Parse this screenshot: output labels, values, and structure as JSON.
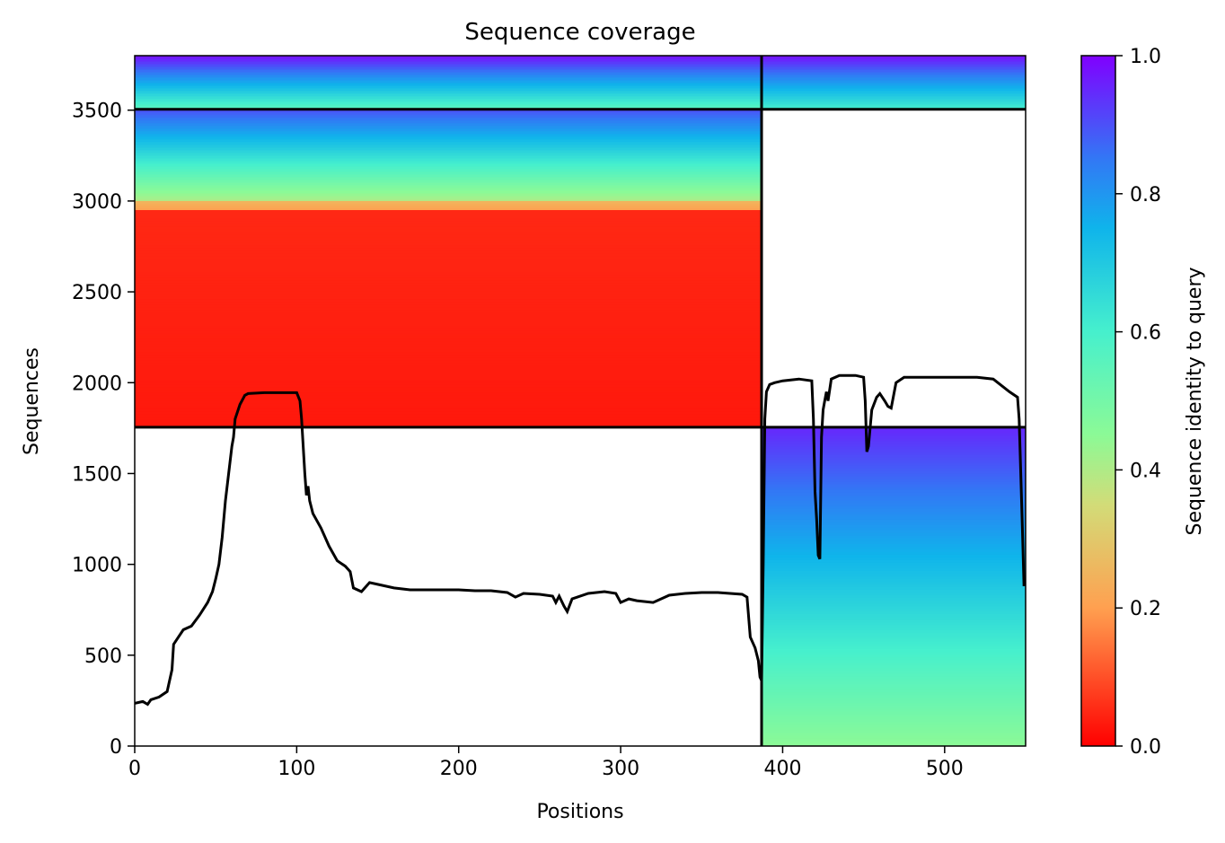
{
  "chart_data": {
    "type": "heatmap",
    "title": "Sequence coverage",
    "xlabel": "Positions",
    "ylabel": "Sequences",
    "xlim": [
      0,
      550
    ],
    "ylim": [
      0,
      3800
    ],
    "xticks": [
      0,
      100,
      200,
      300,
      400,
      500
    ],
    "yticks": [
      0,
      500,
      1000,
      1500,
      2000,
      2500,
      3000,
      3500
    ],
    "colorbar": {
      "label": "Sequence identity to query",
      "colormap": "rainbow_r",
      "range": [
        0.0,
        1.0
      ],
      "ticks": [
        0.0,
        0.2,
        0.4,
        0.6,
        0.8,
        1.0
      ]
    },
    "block_boundaries": {
      "x": 387,
      "y": [
        1755,
        3505
      ]
    },
    "blocks": [
      {
        "x_range": [
          0,
          387
        ],
        "y_range": [
          3505,
          3800
        ],
        "identity_bottom": 0.55,
        "identity_top": 0.98
      },
      {
        "x_range": [
          387,
          550
        ],
        "y_range": [
          3505,
          3800
        ],
        "identity_bottom": 0.6,
        "identity_top": 0.98
      },
      {
        "x_range": [
          0,
          387
        ],
        "y_range": [
          3000,
          3505
        ],
        "identity_bottom": 0.4,
        "identity_top": 0.9
      },
      {
        "x_range": [
          0,
          387
        ],
        "y_range": [
          2950,
          3000
        ],
        "identity_bottom": 0.2,
        "identity_top": 0.25
      },
      {
        "x_range": [
          0,
          387
        ],
        "y_range": [
          1755,
          2950
        ],
        "identity_bottom": 0.03,
        "identity_top": 0.05
      },
      {
        "x_range": [
          387,
          550
        ],
        "y_range": [
          0,
          1755
        ],
        "identity_bottom": 0.45,
        "identity_top": 0.95
      }
    ],
    "coverage_line": {
      "color": "#000000",
      "points": [
        [
          0,
          235
        ],
        [
          5,
          245
        ],
        [
          8,
          230
        ],
        [
          10,
          255
        ],
        [
          15,
          270
        ],
        [
          20,
          300
        ],
        [
          22,
          380
        ],
        [
          23,
          420
        ],
        [
          24,
          560
        ],
        [
          27,
          600
        ],
        [
          30,
          640
        ],
        [
          35,
          660
        ],
        [
          40,
          720
        ],
        [
          45,
          790
        ],
        [
          48,
          850
        ],
        [
          50,
          920
        ],
        [
          52,
          1000
        ],
        [
          54,
          1150
        ],
        [
          56,
          1350
        ],
        [
          58,
          1500
        ],
        [
          60,
          1650
        ],
        [
          61,
          1700
        ],
        [
          62,
          1800
        ],
        [
          65,
          1880
        ],
        [
          68,
          1930
        ],
        [
          70,
          1940
        ],
        [
          80,
          1945
        ],
        [
          90,
          1945
        ],
        [
          100,
          1945
        ],
        [
          102,
          1900
        ],
        [
          103,
          1800
        ],
        [
          104,
          1650
        ],
        [
          105,
          1500
        ],
        [
          106,
          1380
        ],
        [
          107,
          1430
        ],
        [
          108,
          1350
        ],
        [
          110,
          1280
        ],
        [
          115,
          1200
        ],
        [
          120,
          1100
        ],
        [
          125,
          1020
        ],
        [
          130,
          990
        ],
        [
          133,
          960
        ],
        [
          135,
          870
        ],
        [
          140,
          850
        ],
        [
          145,
          900
        ],
        [
          150,
          890
        ],
        [
          160,
          870
        ],
        [
          170,
          860
        ],
        [
          180,
          860
        ],
        [
          200,
          860
        ],
        [
          210,
          855
        ],
        [
          220,
          855
        ],
        [
          230,
          845
        ],
        [
          235,
          820
        ],
        [
          240,
          840
        ],
        [
          250,
          835
        ],
        [
          258,
          825
        ],
        [
          260,
          790
        ],
        [
          262,
          825
        ],
        [
          265,
          770
        ],
        [
          267,
          740
        ],
        [
          270,
          810
        ],
        [
          280,
          840
        ],
        [
          290,
          850
        ],
        [
          297,
          840
        ],
        [
          300,
          790
        ],
        [
          305,
          810
        ],
        [
          310,
          800
        ],
        [
          320,
          790
        ],
        [
          330,
          830
        ],
        [
          340,
          840
        ],
        [
          350,
          845
        ],
        [
          360,
          845
        ],
        [
          375,
          835
        ],
        [
          378,
          820
        ],
        [
          380,
          600
        ],
        [
          383,
          540
        ],
        [
          385,
          470
        ],
        [
          386,
          380
        ],
        [
          387,
          360
        ],
        [
          388,
          1000
        ],
        [
          389,
          1800
        ],
        [
          390,
          1950
        ],
        [
          392,
          1990
        ],
        [
          395,
          2000
        ],
        [
          400,
          2010
        ],
        [
          410,
          2020
        ],
        [
          418,
          2010
        ],
        [
          419,
          1800
        ],
        [
          420,
          1400
        ],
        [
          421,
          1250
        ],
        [
          422,
          1050
        ],
        [
          423,
          1030
        ],
        [
          424,
          1700
        ],
        [
          425,
          1850
        ],
        [
          426,
          1900
        ],
        [
          427,
          1950
        ],
        [
          428,
          1900
        ],
        [
          430,
          2020
        ],
        [
          435,
          2040
        ],
        [
          445,
          2040
        ],
        [
          450,
          2030
        ],
        [
          451,
          1900
        ],
        [
          452,
          1620
        ],
        [
          453,
          1650
        ],
        [
          455,
          1850
        ],
        [
          458,
          1920
        ],
        [
          460,
          1940
        ],
        [
          463,
          1900
        ],
        [
          465,
          1870
        ],
        [
          467,
          1860
        ],
        [
          470,
          2000
        ],
        [
          475,
          2030
        ],
        [
          500,
          2030
        ],
        [
          520,
          2030
        ],
        [
          530,
          2020
        ],
        [
          540,
          1950
        ],
        [
          545,
          1920
        ],
        [
          546,
          1800
        ],
        [
          547,
          1500
        ],
        [
          548,
          1200
        ],
        [
          549,
          880
        ]
      ]
    }
  }
}
